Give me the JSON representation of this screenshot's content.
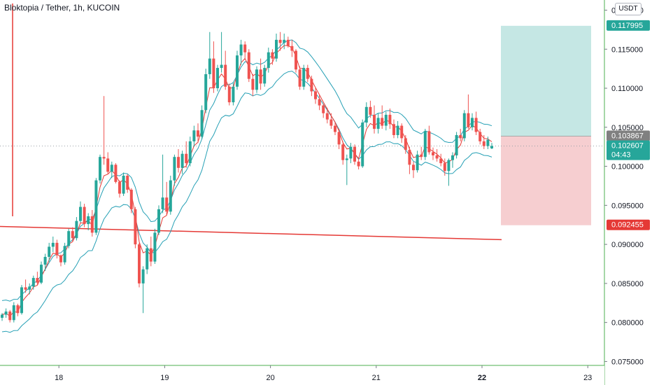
{
  "header": {
    "symbol_title": "Bloktopia / Tether, 1h, KUCOIN",
    "currency_button": "USDT"
  },
  "colors": {
    "up": "#26a69a",
    "down": "#ef5350",
    "ema_fast": "#e53935",
    "ema_slow": "#26a0b5",
    "trendline": "#e53935",
    "target_zone": "#b2dfdb",
    "stop_zone": "#f5c6c8"
  },
  "chart_data": {
    "type": "candlestick",
    "title": "Bloktopia / Tether, 1h, KUCOIN",
    "xlabel": "",
    "ylabel": "",
    "x_ticks": [
      "18",
      "19",
      "20",
      "21",
      "22",
      "23"
    ],
    "y_ticks": [
      "0.120000",
      "0.115000",
      "0.110000",
      "0.105000",
      "0.100000",
      "0.095000",
      "0.090000",
      "0.085000",
      "0.080000",
      "0.075000"
    ],
    "ylim": [
      0.0745,
      0.1213
    ],
    "grid": false,
    "price_labels": {
      "target": "0.117995",
      "entry": "0.103867",
      "last": "0.102607",
      "countdown": "04:43",
      "stop": "0.092455"
    },
    "position": {
      "entry": 0.103867,
      "target": 0.117995,
      "stop": 0.092455
    },
    "trendline": {
      "from": [
        0,
        0.0923
      ],
      "to": [
        127.5,
        0.0906
      ]
    },
    "candles": [
      [
        0.0806,
        0.0812,
        0.0802,
        0.081
      ],
      [
        0.081,
        0.0818,
        0.0806,
        0.0814
      ],
      [
        0.0814,
        0.0816,
        0.08,
        0.0803
      ],
      [
        0.0803,
        0.0826,
        0.08,
        0.0822
      ],
      [
        0.0822,
        0.0824,
        0.0808,
        0.0812
      ],
      [
        0.0812,
        0.0848,
        0.081,
        0.0845
      ],
      [
        0.0845,
        0.0855,
        0.0838,
        0.0842
      ],
      [
        0.0842,
        0.085,
        0.0836,
        0.0846
      ],
      [
        0.0846,
        0.086,
        0.0842,
        0.0857
      ],
      [
        0.0857,
        0.0865,
        0.0848,
        0.0851
      ],
      [
        0.0851,
        0.0878,
        0.0849,
        0.0874
      ],
      [
        0.0874,
        0.0888,
        0.0866,
        0.0884
      ],
      [
        0.0884,
        0.0902,
        0.0878,
        0.0897
      ],
      [
        0.0897,
        0.091,
        0.089,
        0.0902
      ],
      [
        0.0902,
        0.0906,
        0.0882,
        0.0886
      ],
      [
        0.0886,
        0.0887,
        0.0872,
        0.0877
      ],
      [
        0.0877,
        0.0902,
        0.0874,
        0.0898
      ],
      [
        0.0898,
        0.092,
        0.0895,
        0.0917
      ],
      [
        0.0917,
        0.0922,
        0.0904,
        0.0908
      ],
      [
        0.0908,
        0.0935,
        0.0905,
        0.093
      ],
      [
        0.093,
        0.0955,
        0.0928,
        0.0948
      ],
      [
        0.0948,
        0.0952,
        0.0922,
        0.0926
      ],
      [
        0.0926,
        0.094,
        0.0918,
        0.0936
      ],
      [
        0.0936,
        0.0944,
        0.091,
        0.0915
      ],
      [
        0.0915,
        0.0985,
        0.0912,
        0.0982
      ],
      [
        0.0982,
        0.1015,
        0.0978,
        0.1012
      ],
      [
        0.1012,
        0.109,
        0.1002,
        0.101
      ],
      [
        0.101,
        0.1018,
        0.099,
        0.0993
      ],
      [
        0.0993,
        0.1006,
        0.0985,
        0.1002
      ],
      [
        0.1002,
        0.1004,
        0.0978,
        0.098
      ],
      [
        0.098,
        0.0982,
        0.096,
        0.0965
      ],
      [
        0.0965,
        0.0992,
        0.0962,
        0.0988
      ],
      [
        0.0988,
        0.099,
        0.0966,
        0.097
      ],
      [
        0.097,
        0.0972,
        0.094,
        0.0945
      ],
      [
        0.0945,
        0.0948,
        0.0895,
        0.09
      ],
      [
        0.09,
        0.0902,
        0.0845,
        0.085
      ],
      [
        0.085,
        0.0872,
        0.0812,
        0.0868
      ],
      [
        0.0868,
        0.09,
        0.0862,
        0.0895
      ],
      [
        0.0895,
        0.091,
        0.0872,
        0.0878
      ],
      [
        0.0878,
        0.092,
        0.0875,
        0.0915
      ],
      [
        0.0915,
        0.095,
        0.0912,
        0.0945
      ],
      [
        0.0945,
        0.1015,
        0.094,
        0.096
      ],
      [
        0.096,
        0.098,
        0.0938,
        0.0942
      ],
      [
        0.0942,
        0.0988,
        0.0938,
        0.0982
      ],
      [
        0.0982,
        0.1015,
        0.0975,
        0.1012
      ],
      [
        0.1012,
        0.1022,
        0.0992,
        0.0998
      ],
      [
        0.0998,
        0.102,
        0.099,
        0.1016
      ],
      [
        0.1016,
        0.1032,
        0.0998,
        0.1004
      ],
      [
        0.1004,
        0.1038,
        0.1,
        0.1032
      ],
      [
        0.1032,
        0.1052,
        0.1025,
        0.1046
      ],
      [
        0.1046,
        0.1055,
        0.103,
        0.1038
      ],
      [
        0.1038,
        0.1078,
        0.1035,
        0.1072
      ],
      [
        0.1072,
        0.1125,
        0.1068,
        0.1118
      ],
      [
        0.1118,
        0.1172,
        0.1112,
        0.1138
      ],
      [
        0.1138,
        0.116,
        0.1094,
        0.11
      ],
      [
        0.11,
        0.113,
        0.1096,
        0.1126
      ],
      [
        0.1126,
        0.1172,
        0.112,
        0.113
      ],
      [
        0.113,
        0.1148,
        0.1098,
        0.1102
      ],
      [
        0.1102,
        0.1106,
        0.1078,
        0.1082
      ],
      [
        0.1082,
        0.1108,
        0.1078,
        0.1102
      ],
      [
        0.1102,
        0.1148,
        0.1098,
        0.1142
      ],
      [
        0.1142,
        0.1162,
        0.113,
        0.1156
      ],
      [
        0.1156,
        0.116,
        0.1138,
        0.1146
      ],
      [
        0.1146,
        0.115,
        0.1108,
        0.1112
      ],
      [
        0.1112,
        0.1118,
        0.109,
        0.1098
      ],
      [
        0.1098,
        0.1128,
        0.1094,
        0.1124
      ],
      [
        0.1124,
        0.1138,
        0.1098,
        0.1106
      ],
      [
        0.1106,
        0.113,
        0.1102,
        0.1126
      ],
      [
        0.1126,
        0.1152,
        0.112,
        0.1146
      ],
      [
        0.1146,
        0.115,
        0.113,
        0.1138
      ],
      [
        0.1138,
        0.117,
        0.1134,
        0.1162
      ],
      [
        0.1162,
        0.1172,
        0.1148,
        0.1158
      ],
      [
        0.1158,
        0.117,
        0.115,
        0.1162
      ],
      [
        0.1162,
        0.1166,
        0.1152,
        0.1154
      ],
      [
        0.1154,
        0.1162,
        0.114,
        0.1148
      ],
      [
        0.1148,
        0.115,
        0.112,
        0.1124
      ],
      [
        0.1124,
        0.1128,
        0.1098,
        0.1102
      ],
      [
        0.1102,
        0.113,
        0.1098,
        0.1126
      ],
      [
        0.1126,
        0.113,
        0.1108,
        0.1112
      ],
      [
        0.1112,
        0.1116,
        0.109,
        0.1096
      ],
      [
        0.1096,
        0.11,
        0.108,
        0.1086
      ],
      [
        0.1086,
        0.1092,
        0.1072,
        0.1078
      ],
      [
        0.1078,
        0.108,
        0.1062,
        0.1068
      ],
      [
        0.1068,
        0.1075,
        0.1055,
        0.106
      ],
      [
        0.106,
        0.1068,
        0.1048,
        0.1052
      ],
      [
        0.1052,
        0.1056,
        0.104,
        0.1044
      ],
      [
        0.1044,
        0.1048,
        0.1022,
        0.1028
      ],
      [
        0.1028,
        0.1032,
        0.1002,
        0.1008
      ],
      [
        0.1008,
        0.1015,
        0.0976,
        0.101
      ],
      [
        0.101,
        0.103,
        0.1004,
        0.1025
      ],
      [
        0.1025,
        0.1028,
        0.1002,
        0.1006
      ],
      [
        0.1006,
        0.101,
        0.0996,
        0.1
      ],
      [
        0.1,
        0.106,
        0.0998,
        0.1056
      ],
      [
        0.1056,
        0.1082,
        0.105,
        0.1076
      ],
      [
        0.1076,
        0.1084,
        0.1062,
        0.1066
      ],
      [
        0.1066,
        0.1078,
        0.1042,
        0.1048
      ],
      [
        0.1048,
        0.1068,
        0.1042,
        0.1062
      ],
      [
        0.1062,
        0.1078,
        0.1048,
        0.1052
      ],
      [
        0.1052,
        0.107,
        0.1046,
        0.1066
      ],
      [
        0.1066,
        0.1074,
        0.1048,
        0.1054
      ],
      [
        0.1054,
        0.106,
        0.1036,
        0.104
      ],
      [
        0.104,
        0.1058,
        0.1036,
        0.1052
      ],
      [
        0.1052,
        0.1055,
        0.103,
        0.1036
      ],
      [
        0.1036,
        0.104,
        0.1016,
        0.1021
      ],
      [
        0.1021,
        0.1025,
        0.099,
        0.1002
      ],
      [
        0.1002,
        0.1006,
        0.0985,
        0.0995
      ],
      [
        0.0995,
        0.102,
        0.0992,
        0.1015
      ],
      [
        0.1015,
        0.1025,
        0.1008,
        0.1012
      ],
      [
        0.1012,
        0.1048,
        0.1008,
        0.1045
      ],
      [
        0.1045,
        0.1052,
        0.1015,
        0.1018
      ],
      [
        0.1018,
        0.1024,
        0.1008,
        0.1014
      ],
      [
        0.1014,
        0.1022,
        0.1006,
        0.101
      ],
      [
        0.101,
        0.1016,
        0.1,
        0.1004
      ],
      [
        0.1004,
        0.101,
        0.0988,
        0.0994
      ],
      [
        0.0994,
        0.101,
        0.0975,
        0.1008
      ],
      [
        0.1008,
        0.1018,
        0.0998,
        0.1014
      ],
      [
        0.1014,
        0.1044,
        0.101,
        0.104
      ],
      [
        0.104,
        0.1048,
        0.1032,
        0.1036
      ],
      [
        0.1036,
        0.1072,
        0.1032,
        0.1068
      ],
      [
        0.1068,
        0.1092,
        0.1048,
        0.105
      ],
      [
        0.105,
        0.1068,
        0.1046,
        0.1062
      ],
      [
        0.1062,
        0.107,
        0.104,
        0.1044
      ],
      [
        0.1044,
        0.1048,
        0.1028,
        0.1032
      ],
      [
        0.1032,
        0.104,
        0.1022,
        0.1026
      ],
      [
        0.1026,
        0.1038,
        0.1022,
        0.1034
      ],
      [
        0.1023,
        0.103,
        0.1022,
        0.1026
      ]
    ]
  }
}
